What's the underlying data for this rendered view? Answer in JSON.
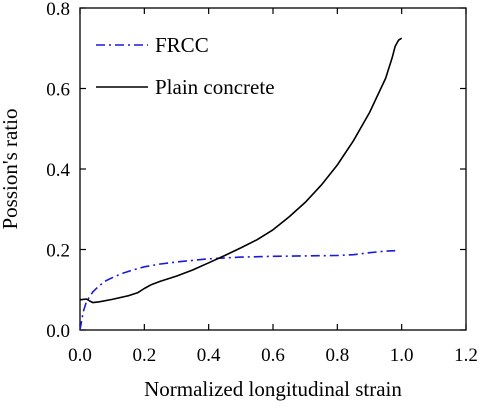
{
  "chart_data": {
    "type": "line",
    "xlabel": "Normalized longitudinal strain",
    "ylabel": "Possion's ratio",
    "xlim": [
      0.0,
      1.2
    ],
    "ylim": [
      0.0,
      0.8
    ],
    "xticks": [
      0.0,
      0.2,
      0.4,
      0.6,
      0.8,
      1.0,
      1.2
    ],
    "yticks": [
      0.0,
      0.2,
      0.4,
      0.6,
      0.8
    ],
    "xtick_labels": [
      "0.0",
      "0.2",
      "0.4",
      "0.6",
      "0.8",
      "1.0",
      "1.2"
    ],
    "ytick_labels": [
      "0.0",
      "0.2",
      "0.4",
      "0.6",
      "0.8"
    ],
    "grid": false,
    "legend_position": "top-left",
    "series": [
      {
        "name": "FRCC",
        "color": "#1a1adb",
        "style": "dash-dot",
        "x": [
          0.0,
          0.01,
          0.02,
          0.04,
          0.06,
          0.08,
          0.1,
          0.13,
          0.16,
          0.2,
          0.25,
          0.3,
          0.35,
          0.4,
          0.5,
          0.6,
          0.7,
          0.8,
          0.85,
          0.9,
          0.95,
          0.98
        ],
        "y": [
          0.0,
          0.045,
          0.07,
          0.095,
          0.11,
          0.122,
          0.13,
          0.14,
          0.148,
          0.157,
          0.164,
          0.169,
          0.173,
          0.177,
          0.181,
          0.183,
          0.184,
          0.185,
          0.187,
          0.192,
          0.196,
          0.197
        ]
      },
      {
        "name": "Plain concrete",
        "color": "#000000",
        "style": "solid",
        "x": [
          0.0,
          0.02,
          0.03,
          0.04,
          0.06,
          0.1,
          0.15,
          0.18,
          0.2,
          0.22,
          0.25,
          0.3,
          0.35,
          0.4,
          0.45,
          0.5,
          0.55,
          0.6,
          0.65,
          0.7,
          0.75,
          0.8,
          0.85,
          0.9,
          0.95,
          0.97,
          0.98,
          0.99,
          1.0
        ],
        "y": [
          0.075,
          0.077,
          0.072,
          0.068,
          0.07,
          0.076,
          0.085,
          0.093,
          0.103,
          0.112,
          0.121,
          0.134,
          0.149,
          0.167,
          0.185,
          0.204,
          0.224,
          0.249,
          0.281,
          0.317,
          0.36,
          0.41,
          0.47,
          0.54,
          0.625,
          0.675,
          0.705,
          0.72,
          0.725
        ]
      }
    ]
  }
}
